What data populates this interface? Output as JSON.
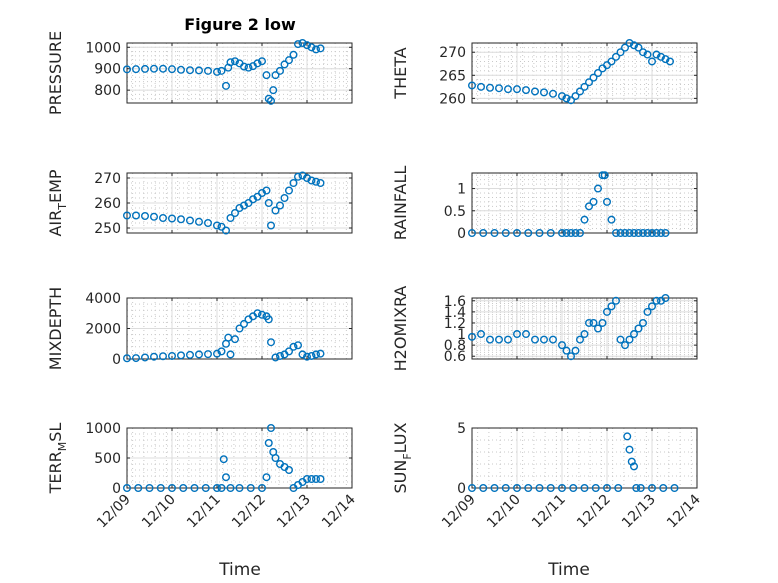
{
  "figure": {
    "title": "Figure 2 low",
    "xlabel": "Time",
    "x_ticks": [
      "12/09",
      "12/10",
      "12/11",
      "12/12",
      "12/13",
      "12/14"
    ],
    "marker_color": "#0072BD"
  },
  "chart_data": [
    {
      "type": "scatter",
      "ylabel": "PRESSURE",
      "ylim": [
        740,
        1020
      ],
      "yticks": [
        800,
        900,
        1000
      ],
      "xlim": [
        0,
        5
      ],
      "grid": true,
      "x": [
        0,
        0.2,
        0.4,
        0.6,
        0.8,
        1,
        1.2,
        1.4,
        1.6,
        1.8,
        2,
        2.1,
        2.2,
        2.25,
        2.3,
        2.4,
        2.5,
        2.6,
        2.7,
        2.8,
        2.9,
        3,
        3.1,
        3.15,
        3.2,
        3.25,
        3.3,
        3.4,
        3.5,
        3.6,
        3.7,
        3.8,
        3.9,
        4,
        4.1,
        4.2,
        4.3
      ],
      "y": [
        897,
        898,
        899,
        900,
        900,
        898,
        895,
        893,
        892,
        890,
        885,
        890,
        820,
        905,
        930,
        935,
        925,
        910,
        905,
        912,
        925,
        935,
        870,
        760,
        750,
        800,
        870,
        890,
        920,
        940,
        965,
        1015,
        1020,
        1010,
        1000,
        990,
        995
      ]
    },
    {
      "type": "scatter",
      "ylabel": "THETA",
      "ylim": [
        259,
        272
      ],
      "yticks": [
        260,
        265,
        270
      ],
      "xlim": [
        0,
        5
      ],
      "grid": true,
      "x": [
        0,
        0.2,
        0.4,
        0.6,
        0.8,
        1,
        1.2,
        1.4,
        1.6,
        1.8,
        2,
        2.1,
        2.2,
        2.3,
        2.4,
        2.5,
        2.6,
        2.7,
        2.8,
        2.9,
        3,
        3.1,
        3.2,
        3.3,
        3.4,
        3.5,
        3.6,
        3.7,
        3.8,
        3.9,
        4,
        4.1,
        4.2,
        4.3,
        4.4
      ],
      "y": [
        262.8,
        262.5,
        262.3,
        262.2,
        262,
        262,
        261.8,
        261.5,
        261.3,
        261,
        260.5,
        260,
        259.6,
        260.5,
        261.5,
        262.5,
        263.5,
        264.5,
        265.5,
        266.5,
        267.2,
        268,
        269,
        270,
        271,
        272,
        271.5,
        271,
        270,
        269.5,
        268,
        269.5,
        269,
        268.5,
        268
      ]
    },
    {
      "type": "scatter",
      "ylabel": "AIR_TEMP",
      "ylim": [
        248,
        272
      ],
      "yticks": [
        250,
        260,
        270
      ],
      "xlim": [
        0,
        5
      ],
      "grid": true,
      "x": [
        0,
        0.2,
        0.4,
        0.6,
        0.8,
        1,
        1.2,
        1.4,
        1.6,
        1.8,
        2,
        2.1,
        2.2,
        2.3,
        2.4,
        2.5,
        2.6,
        2.7,
        2.8,
        2.9,
        3,
        3.1,
        3.15,
        3.2,
        3.3,
        3.4,
        3.5,
        3.6,
        3.7,
        3.8,
        3.9,
        4,
        4.1,
        4.2,
        4.3
      ],
      "y": [
        255,
        255,
        254.8,
        254.5,
        254,
        253.8,
        253.5,
        253,
        252.5,
        252,
        251,
        250.5,
        249,
        254,
        256,
        258,
        259,
        260,
        261.5,
        262.5,
        264,
        265,
        260,
        251,
        257,
        259,
        262,
        265,
        268,
        270.5,
        271,
        270,
        269,
        268.5,
        268
      ]
    },
    {
      "type": "scatter",
      "ylabel": "RAINFALL",
      "ylim": [
        0,
        1.35
      ],
      "yticks": [
        0,
        0.5,
        1
      ],
      "xlim": [
        0,
        5
      ],
      "grid": true,
      "x": [
        0,
        0.25,
        0.5,
        0.75,
        1,
        1.25,
        1.5,
        1.75,
        2,
        2.1,
        2.2,
        2.3,
        2.4,
        2.5,
        2.6,
        2.7,
        2.8,
        2.9,
        2.95,
        3,
        3.1,
        3.2,
        3.3,
        3.4,
        3.5,
        3.6,
        3.7,
        3.8,
        3.9,
        4,
        4.1,
        4.2,
        4.3
      ],
      "y": [
        0,
        0,
        0,
        0,
        0,
        0,
        0,
        0,
        0,
        0,
        0,
        0,
        0,
        0.3,
        0.6,
        0.7,
        1.0,
        1.3,
        1.3,
        0.7,
        0.3,
        0,
        0,
        0,
        0,
        0,
        0,
        0,
        0,
        0,
        0,
        0,
        0
      ]
    },
    {
      "type": "scatter",
      "ylabel": "MIXDEPTH",
      "ylim": [
        0,
        4000
      ],
      "yticks": [
        0,
        2000,
        4000
      ],
      "xlim": [
        0,
        5
      ],
      "grid": true,
      "x": [
        0,
        0.2,
        0.4,
        0.6,
        0.8,
        1,
        1.2,
        1.4,
        1.6,
        1.8,
        2,
        2.1,
        2.2,
        2.25,
        2.3,
        2.4,
        2.5,
        2.6,
        2.7,
        2.8,
        2.9,
        3,
        3.1,
        3.15,
        3.2,
        3.3,
        3.4,
        3.5,
        3.6,
        3.7,
        3.8,
        3.9,
        4,
        4.1,
        4.2,
        4.3
      ],
      "y": [
        50,
        60,
        100,
        150,
        180,
        200,
        240,
        270,
        300,
        320,
        350,
        500,
        1000,
        1400,
        300,
        1300,
        2000,
        2300,
        2600,
        2800,
        3000,
        2900,
        2800,
        2600,
        1100,
        100,
        200,
        300,
        500,
        800,
        900,
        300,
        150,
        200,
        300,
        350
      ]
    },
    {
      "type": "scatter",
      "ylabel": "H2OMIXRA",
      "ylim": [
        0.55,
        1.65
      ],
      "yticks": [
        0.6,
        0.8,
        1,
        1.2,
        1.4,
        1.6
      ],
      "xlim": [
        0,
        5
      ],
      "grid": true,
      "x": [
        0,
        0.2,
        0.4,
        0.6,
        0.8,
        1,
        1.2,
        1.4,
        1.6,
        1.8,
        2,
        2.1,
        2.2,
        2.3,
        2.4,
        2.5,
        2.6,
        2.7,
        2.8,
        2.9,
        3,
        3.1,
        3.2,
        3.3,
        3.4,
        3.5,
        3.6,
        3.7,
        3.8,
        3.9,
        4,
        4.1,
        4.2,
        4.3
      ],
      "y": [
        0.95,
        1.0,
        0.9,
        0.9,
        0.9,
        1.0,
        1.0,
        0.9,
        0.9,
        0.9,
        0.8,
        0.7,
        0.6,
        0.7,
        0.9,
        1.0,
        1.2,
        1.2,
        1.1,
        1.2,
        1.4,
        1.5,
        1.6,
        0.9,
        0.8,
        0.9,
        1.0,
        1.1,
        1.2,
        1.4,
        1.5,
        1.6,
        1.6,
        1.65
      ]
    },
    {
      "type": "scatter",
      "ylabel": "TERR_MSL",
      "ylim": [
        0,
        1000
      ],
      "yticks": [
        0,
        500,
        1000
      ],
      "xlim": [
        0,
        5
      ],
      "grid": true,
      "x": [
        0,
        0.25,
        0.5,
        0.75,
        1,
        1.25,
        1.5,
        1.75,
        2,
        2.1,
        2.15,
        2.2,
        2.3,
        2.5,
        2.75,
        3,
        3.1,
        3.15,
        3.2,
        3.25,
        3.3,
        3.4,
        3.5,
        3.6,
        3.7,
        3.8,
        3.9,
        4,
        4.1,
        4.2,
        4.3
      ],
      "y": [
        0,
        0,
        0,
        0,
        0,
        0,
        0,
        0,
        0,
        0,
        480,
        180,
        0,
        0,
        0,
        0,
        180,
        750,
        1000,
        600,
        500,
        400,
        350,
        300,
        0,
        50,
        100,
        150,
        150,
        150,
        150
      ]
    },
    {
      "type": "scatter",
      "ylabel": "SUN_FLUX",
      "ylim": [
        0,
        5
      ],
      "yticks": [
        0,
        5
      ],
      "xlim": [
        0,
        5
      ],
      "grid": true,
      "x": [
        0,
        0.25,
        0.5,
        0.75,
        1,
        1.25,
        1.5,
        1.75,
        2,
        2.25,
        2.5,
        2.75,
        3,
        3.25,
        3.45,
        3.5,
        3.55,
        3.6,
        3.65,
        3.75,
        4,
        4.25,
        4.5
      ],
      "y": [
        0,
        0,
        0,
        0,
        0,
        0,
        0,
        0,
        0,
        0,
        0,
        0,
        0,
        0,
        4.3,
        3.2,
        2.2,
        1.8,
        0,
        0,
        0,
        0,
        0
      ]
    }
  ]
}
